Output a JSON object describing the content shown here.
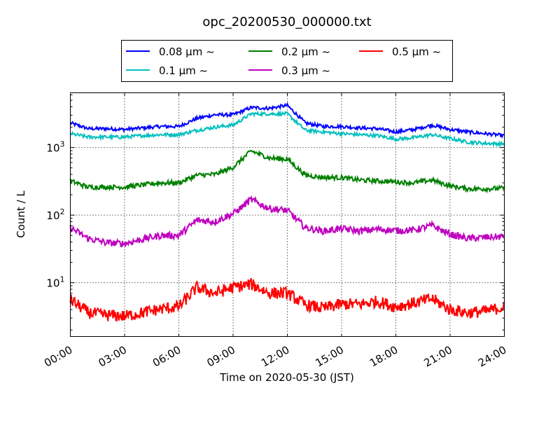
{
  "chart_data": {
    "type": "line",
    "title": "opc_20200530_000000.txt",
    "xlabel": "Time on 2020-05-30 (JST)",
    "ylabel": "Count / L",
    "yscale": "log",
    "ylim": [
      1.6,
      6450
    ],
    "xlim": [
      0,
      24
    ],
    "grid": true,
    "legend_placement": "top-center-outside",
    "x_ticks": [
      0,
      3,
      6,
      9,
      12,
      15,
      18,
      21,
      24
    ],
    "x_tick_labels": [
      "00:00",
      "03:00",
      "06:00",
      "09:00",
      "12:00",
      "15:00",
      "18:00",
      "21:00",
      "24:00"
    ],
    "y_ticks": [
      10,
      100,
      1000
    ],
    "y_tick_labels": [
      {
        "base": "10",
        "exp": "1"
      },
      {
        "base": "10",
        "exp": "2"
      },
      {
        "base": "10",
        "exp": "3"
      }
    ],
    "x": [
      0,
      1,
      2,
      3,
      4,
      5,
      6,
      7,
      8,
      9,
      10,
      11,
      12,
      13,
      14,
      15,
      16,
      17,
      18,
      19,
      20,
      21,
      22,
      23,
      24
    ],
    "series": [
      {
        "name": "0.08 μm ~",
        "color": "#0000ff",
        "values": [
          2300,
          1900,
          1900,
          1850,
          1950,
          2050,
          2050,
          2700,
          3050,
          3050,
          3900,
          3800,
          4200,
          2300,
          2050,
          2050,
          1950,
          1900,
          1700,
          1850,
          2150,
          1850,
          1700,
          1600,
          1500
        ]
      },
      {
        "name": "0.1 μm ~",
        "color": "#00bfbf",
        "values": [
          1600,
          1430,
          1430,
          1430,
          1500,
          1550,
          1550,
          1800,
          2000,
          2150,
          3150,
          3150,
          3150,
          1800,
          1700,
          1600,
          1550,
          1500,
          1330,
          1400,
          1550,
          1360,
          1200,
          1150,
          1130
        ]
      },
      {
        "name": "0.2 μm ~",
        "color": "#008000",
        "values": [
          320,
          260,
          260,
          260,
          280,
          300,
          300,
          390,
          400,
          510,
          890,
          700,
          670,
          390,
          360,
          360,
          330,
          320,
          310,
          300,
          330,
          270,
          245,
          245,
          250
        ]
      },
      {
        "name": "0.3 μm ~",
        "color": "#bf00bf",
        "values": [
          65,
          45,
          39,
          38,
          44,
          50,
          50,
          84,
          80,
          105,
          170,
          125,
          117,
          65,
          58,
          63,
          58,
          62,
          59,
          60,
          70,
          52,
          45,
          47,
          48
        ]
      },
      {
        "name": "0.5 μm ~",
        "color": "#ff0000",
        "values": [
          5.6,
          3.6,
          3.3,
          3.2,
          3.6,
          4.1,
          4.4,
          8.5,
          7,
          8.5,
          9.5,
          7,
          7,
          4.7,
          4.2,
          4.8,
          4.8,
          5.3,
          4.4,
          5,
          5.8,
          4,
          3.6,
          3.8,
          4.4
        ]
      }
    ],
    "legend_order": [
      0,
      1,
      2,
      3,
      4
    ]
  }
}
